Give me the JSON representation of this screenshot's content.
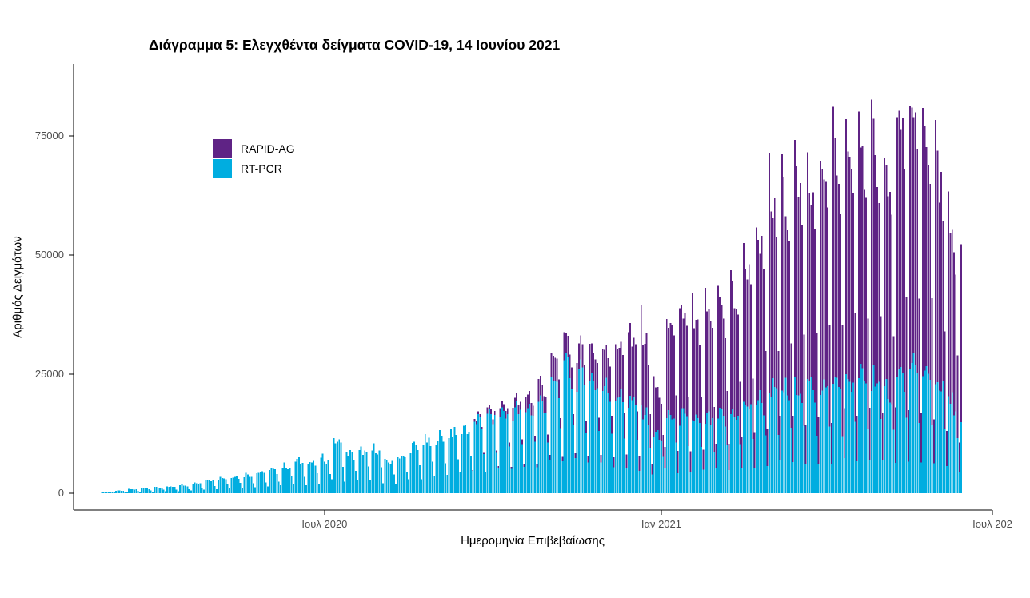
{
  "chart_data": {
    "type": "bar",
    "stacked": true,
    "frequency": "daily",
    "title": "Διάγραμμα 5: Ελεγχθέντα δείγματα COVID-19, 14 Ιουνίου 2021",
    "xlabel": "Ημερομηνία Επιβεβαίωσης",
    "ylabel": "Αριθμός Δειγμάτων",
    "x_start_date": "2020-03-01",
    "x_end_date": "2021-06-14",
    "n_days": 471,
    "y_ticks": [
      0,
      25000,
      50000,
      75000
    ],
    "ylim": [
      0,
      89000
    ],
    "grid": false,
    "legend_position": "inside-top-left",
    "x_ticks": [
      {
        "label": "Ιουλ 2020",
        "day_offset": 122
      },
      {
        "label": "Ιαν 2021",
        "day_offset": 306
      },
      {
        "label": "Ιουλ 202",
        "day_offset": 487
      }
    ],
    "style": {
      "background": "#FFFFFF",
      "axis_line_color": "#000000",
      "tick_label_color": "#4D4D4D",
      "text_color": "#000000"
    },
    "series": [
      {
        "name": "RAPID-AG",
        "color": "#5F2385",
        "weekly_level": [
          0,
          0,
          0,
          0,
          0,
          0,
          0,
          0,
          0,
          0,
          0,
          0,
          0,
          0,
          0,
          0,
          0,
          0,
          0,
          0,
          0,
          0,
          0,
          0,
          0,
          0,
          0,
          0,
          0,
          500,
          1000,
          1500,
          2000,
          2600,
          3500,
          4500,
          4500,
          5000,
          6000,
          7500,
          10000,
          13000,
          15000,
          9000,
          18000,
          20000,
          19000,
          20000,
          22000,
          24000,
          28000,
          32000,
          36000,
          39000,
          41000,
          40000,
          42000,
          44000,
          44000,
          45000,
          46000,
          42000,
          48000,
          50000,
          48000,
          42000,
          32000,
          28000
        ]
      },
      {
        "name": "RT-PCR",
        "color": "#00ADE0",
        "weekly_level": [
          300,
          500,
          800,
          1000,
          1200,
          1300,
          1600,
          2000,
          2800,
          3200,
          3500,
          3800,
          4200,
          4600,
          5500,
          6500,
          6200,
          7000,
          10500,
          8000,
          8500,
          9000,
          6500,
          7500,
          9500,
          10500,
          11500,
          12500,
          13500,
          14500,
          15500,
          16500,
          17000,
          17500,
          18500,
          22000,
          25000,
          24000,
          23000,
          21500,
          20000,
          18500,
          16500,
          12000,
          16000,
          15500,
          15000,
          15000,
          15500,
          16500,
          18000,
          19000,
          21000,
          21000,
          22000,
          21500,
          22000,
          22500,
          23000,
          23500,
          24000,
          21000,
          24000,
          25000,
          24000,
          22500,
          18500,
          14000
        ]
      }
    ],
    "weekday_factors": {
      "note": "index 0 = Sunday (2020-03-01 was a Sunday)",
      "RAPID-AG": [
        0.22,
        1.28,
        1.05,
        0.98,
        1.0,
        0.9,
        0.5
      ],
      "RT-PCR": [
        0.3,
        1.0,
        1.06,
        1.05,
        1.0,
        0.95,
        0.6
      ]
    },
    "jitter": 0.12,
    "peak_total": 85500
  }
}
